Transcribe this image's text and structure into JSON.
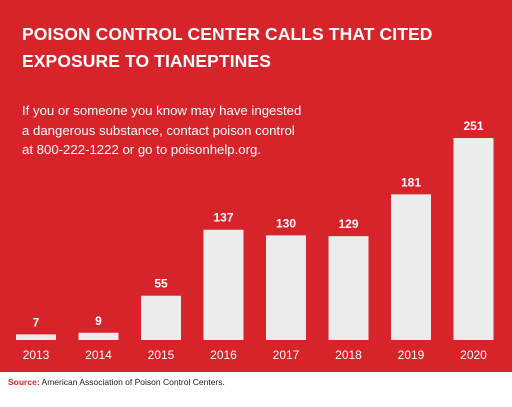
{
  "colors": {
    "background": "#d7232a",
    "bar": "#ececec",
    "text": "#ffffff",
    "source_label": "#d7232a"
  },
  "chart_data": {
    "type": "bar",
    "title": "POISON CONTROL CENTER CALLS THAT CITED EXPOSURE TO TIANEPTINES",
    "annotation": "If you or someone you know may have ingested a dangerous substance, contact poison control at 800-222-1222 or go to poisonhelp.org.",
    "categories": [
      "2013",
      "2014",
      "2015",
      "2016",
      "2017",
      "2018",
      "2019",
      "2020"
    ],
    "values": [
      7,
      9,
      55,
      137,
      130,
      129,
      181,
      251
    ],
    "data_labels": [
      "7",
      "9",
      "55",
      "137",
      "130",
      "129",
      "181",
      "251"
    ],
    "xlabel": "",
    "ylabel": "",
    "ylim": [
      0,
      251
    ],
    "grid": false,
    "legend": "none"
  },
  "source": {
    "label": "Source:",
    "text": " American Association of Poison Control Centers."
  }
}
